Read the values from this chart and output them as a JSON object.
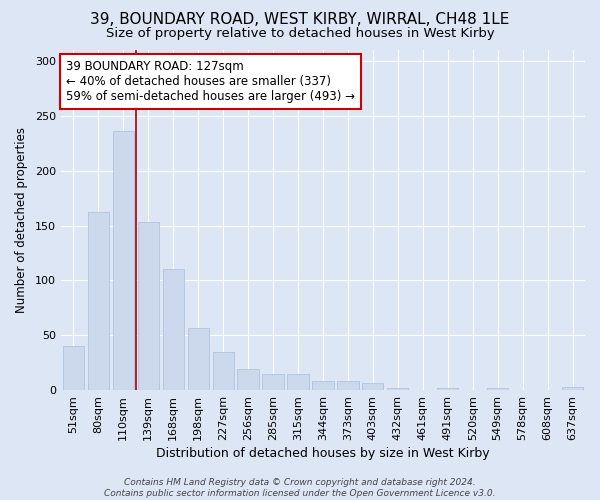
{
  "title": "39, BOUNDARY ROAD, WEST KIRBY, WIRRAL, CH48 1LE",
  "subtitle": "Size of property relative to detached houses in West Kirby",
  "xlabel": "Distribution of detached houses by size in West Kirby",
  "ylabel": "Number of detached properties",
  "categories": [
    "51sqm",
    "80sqm",
    "110sqm",
    "139sqm",
    "168sqm",
    "198sqm",
    "227sqm",
    "256sqm",
    "285sqm",
    "315sqm",
    "344sqm",
    "373sqm",
    "403sqm",
    "432sqm",
    "461sqm",
    "491sqm",
    "520sqm",
    "549sqm",
    "578sqm",
    "608sqm",
    "637sqm"
  ],
  "values": [
    40,
    162,
    236,
    153,
    110,
    57,
    35,
    19,
    15,
    15,
    8,
    8,
    6,
    2,
    0,
    2,
    0,
    2,
    0,
    0,
    3
  ],
  "bar_color": "#ccd9ed",
  "bar_edge_color": "#afc4df",
  "vline_x": 2.5,
  "vline_color": "#aa0000",
  "annotation_text": "39 BOUNDARY ROAD: 127sqm\n← 40% of detached houses are smaller (337)\n59% of semi-detached houses are larger (493) →",
  "annotation_box_facecolor": "#ffffff",
  "annotation_box_edge": "#cc0000",
  "ylim": [
    0,
    310
  ],
  "background_color": "#dce6f5",
  "plot_bg_color": "#dce6f5",
  "grid_color": "#ffffff",
  "footer_text": "Contains HM Land Registry data © Crown copyright and database right 2024.\nContains public sector information licensed under the Open Government Licence v3.0.",
  "title_fontsize": 11,
  "subtitle_fontsize": 9.5,
  "xlabel_fontsize": 9,
  "ylabel_fontsize": 8.5,
  "tick_fontsize": 8,
  "footer_fontsize": 6.5
}
